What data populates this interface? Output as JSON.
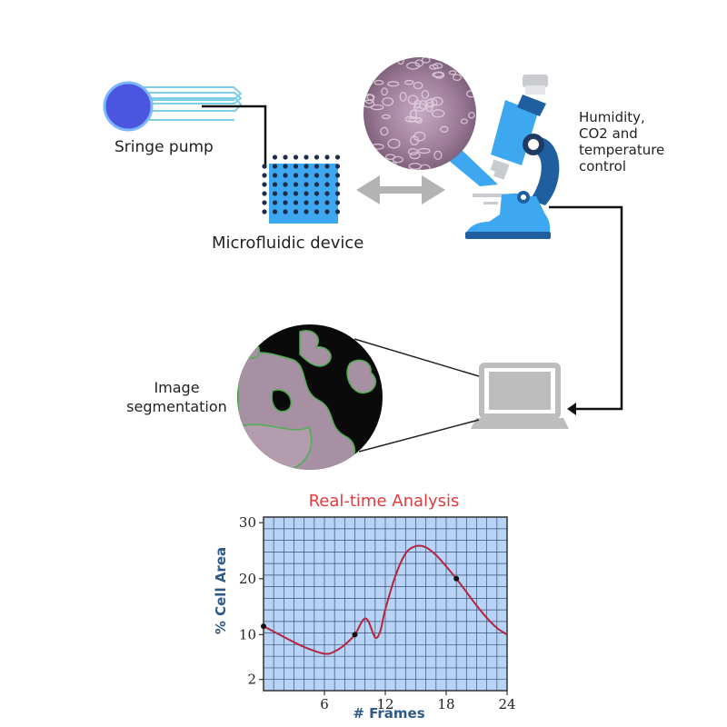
{
  "labels": {
    "syringe_pump": "Sringe pump",
    "microfluidic_device": "Microfluidic device",
    "environment_line1": "Humidity,",
    "environment_line2": "CO2 and",
    "environment_line3": "temperature",
    "environment_line4": "control",
    "segmentation_line1": "Image",
    "segmentation_line2": "segmentation"
  },
  "icons": {
    "syringe": "syringe-pump-icon",
    "device": "microfluidic-chip-icon",
    "arrow": "double-arrow-icon",
    "microscope": "microscope-icon",
    "laptop": "laptop-icon"
  },
  "colors": {
    "blue": "#3da1e8",
    "dark_blue": "#1f5fa0",
    "grid_bg": "#b7d3f5",
    "curve": "#b5243e",
    "title_red": "#e8383d"
  },
  "chart_data": {
    "type": "line",
    "title": "Real-time Analysis",
    "xlabel": "#  Frames",
    "ylabel": "% Cell Area",
    "xlim": [
      0,
      24
    ],
    "ylim": [
      0,
      31
    ],
    "xticks": [
      6,
      12,
      18,
      24
    ],
    "yticks": [
      2,
      10,
      20,
      30
    ],
    "grid": true,
    "series": [
      {
        "x": [
          0,
          2,
          4,
          6,
          7,
          8,
          9,
          9.8,
          10.3,
          11,
          11.5,
          12,
          13,
          14,
          15,
          16,
          17,
          18,
          19,
          20,
          21,
          22,
          23,
          24
        ],
        "values": [
          11.5,
          9.6,
          7.8,
          6.6,
          7.0,
          8.2,
          10.0,
          12.6,
          12.5,
          9.5,
          10.6,
          14.5,
          20.5,
          24.5,
          25.8,
          25.6,
          24.2,
          22.2,
          20.0,
          17.6,
          15.2,
          13.0,
          11.2,
          10.0
        ]
      }
    ],
    "markers": [
      {
        "x": 0,
        "y": 11.5
      },
      {
        "x": 9,
        "y": 10.0
      },
      {
        "x": 19,
        "y": 20.0
      }
    ]
  }
}
